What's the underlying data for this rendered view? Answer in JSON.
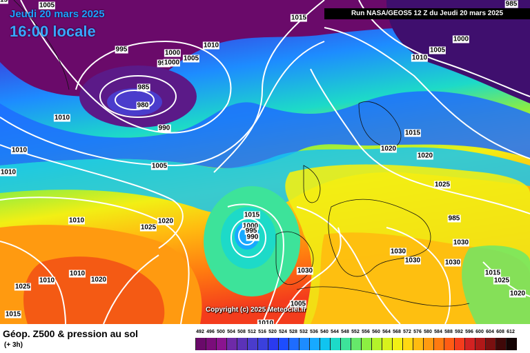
{
  "header": {
    "date": "Jeudi 20 mars 2025",
    "time": "16:00 locale",
    "run": "Run NASA/GEOS5 12 Z du Jeudi 20 mars 2025"
  },
  "map": {
    "copyright": "Copyright (c) 2025 Meteociel.fr",
    "isobar_labels": [
      {
        "text": "1005"
      },
      {
        "text": "1015"
      },
      {
        "text": "985"
      },
      {
        "text": "995"
      },
      {
        "text": "1010"
      },
      {
        "text": "1000"
      },
      {
        "text": "995"
      },
      {
        "text": "1000"
      },
      {
        "text": "1005"
      },
      {
        "text": "1000"
      },
      {
        "text": "1005"
      },
      {
        "text": "1010"
      },
      {
        "text": "985"
      },
      {
        "text": "980"
      },
      {
        "text": "990"
      },
      {
        "text": "1010"
      },
      {
        "text": "1010"
      },
      {
        "text": "1005"
      },
      {
        "text": "1010"
      },
      {
        "text": "1015"
      },
      {
        "text": "1020"
      },
      {
        "text": "1020"
      },
      {
        "text": "1025"
      },
      {
        "text": "1010"
      },
      {
        "text": "1025"
      },
      {
        "text": "1020"
      },
      {
        "text": "1015"
      },
      {
        "text": "1000"
      },
      {
        "text": "995"
      },
      {
        "text": "990"
      },
      {
        "text": "985"
      },
      {
        "text": "1030"
      },
      {
        "text": "1030"
      },
      {
        "text": "1030"
      },
      {
        "text": "1030"
      },
      {
        "text": "1030"
      },
      {
        "text": "1010"
      },
      {
        "text": "1020"
      },
      {
        "text": "1025"
      },
      {
        "text": "1010"
      },
      {
        "text": "1015"
      },
      {
        "text": "1005"
      },
      {
        "text": "1010"
      },
      {
        "text": "1015"
      },
      {
        "text": "1025"
      },
      {
        "text": "1020"
      },
      {
        "text": "1015"
      }
    ]
  },
  "legend": {
    "title": "Géop. Z500 & pression au sol",
    "subtitle": "(+ 3h)",
    "scale": [
      {
        "label": "492",
        "color": "#6a0a6a"
      },
      {
        "label": "496",
        "color": "#7a0d7a"
      },
      {
        "label": "500",
        "color": "#8a148f"
      },
      {
        "label": "504",
        "color": "#6e2aa8"
      },
      {
        "label": "508",
        "color": "#5b32b8"
      },
      {
        "label": "512",
        "color": "#4a3ccc"
      },
      {
        "label": "516",
        "color": "#3a40dd"
      },
      {
        "label": "520",
        "color": "#2a3af0"
      },
      {
        "label": "524",
        "color": "#1d4dff"
      },
      {
        "label": "528",
        "color": "#1e6cff"
      },
      {
        "label": "532",
        "color": "#1d8cff"
      },
      {
        "label": "536",
        "color": "#17a9ff"
      },
      {
        "label": "540",
        "color": "#10c4f0"
      },
      {
        "label": "544",
        "color": "#1ddac8"
      },
      {
        "label": "548",
        "color": "#3de39a"
      },
      {
        "label": "552",
        "color": "#66e86a"
      },
      {
        "label": "556",
        "color": "#8cee42"
      },
      {
        "label": "560",
        "color": "#b4f22a"
      },
      {
        "label": "564",
        "color": "#d8f21c"
      },
      {
        "label": "568",
        "color": "#f2ef14"
      },
      {
        "label": "572",
        "color": "#ffd812"
      },
      {
        "label": "576",
        "color": "#ffbb10"
      },
      {
        "label": "580",
        "color": "#ff9a10"
      },
      {
        "label": "584",
        "color": "#ff7a10"
      },
      {
        "label": "588",
        "color": "#ff5c14"
      },
      {
        "label": "592",
        "color": "#f43c1c"
      },
      {
        "label": "596",
        "color": "#d22222"
      },
      {
        "label": "600",
        "color": "#b01818"
      },
      {
        "label": "604",
        "color": "#7a1010"
      },
      {
        "label": "608",
        "color": "#3f0808"
      },
      {
        "label": "612",
        "color": "#140404"
      }
    ]
  }
}
